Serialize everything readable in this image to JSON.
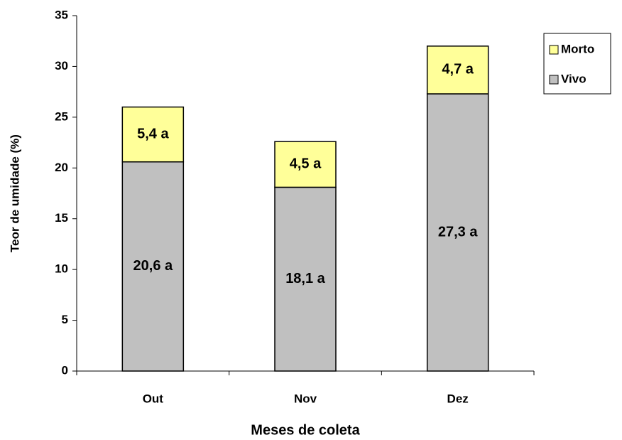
{
  "chart_data": {
    "type": "stacked_bar",
    "x_label": "Meses de coleta",
    "y_label": "Teor de umidade (%)",
    "categories": [
      "Out",
      "Nov",
      "Dez"
    ],
    "series": [
      {
        "name": "Vivo",
        "color": "#c0c0c0",
        "values": [
          20.6,
          18.1,
          27.3
        ],
        "value_labels": [
          "20,6 a",
          "18,1 a",
          "27,3 a"
        ]
      },
      {
        "name": "Morto",
        "color": "#ffff99",
        "values": [
          5.4,
          4.5,
          4.7
        ],
        "value_labels": [
          "5,4 a",
          "4,5 a",
          "4,7 a"
        ]
      }
    ],
    "ylim": [
      0,
      35
    ],
    "yticks": [
      0,
      5,
      10,
      15,
      20,
      25,
      30,
      35
    ],
    "grid": false,
    "legend": "right"
  }
}
